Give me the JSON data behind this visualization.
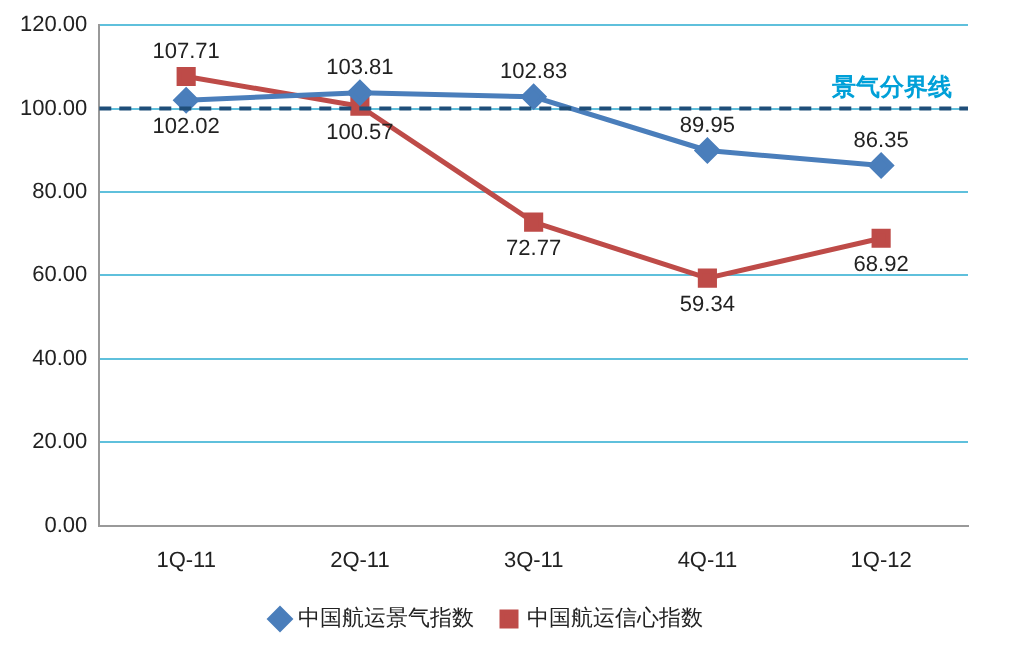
{
  "chart_data": {
    "type": "line",
    "categories": [
      "1Q-11",
      "2Q-11",
      "3Q-11",
      "4Q-11",
      "1Q-12"
    ],
    "series": [
      {
        "name": "中国航运景气指数",
        "color": "#4a7ebb",
        "marker": "diamond",
        "values": [
          102.02,
          103.81,
          102.83,
          89.95,
          86.35
        ]
      },
      {
        "name": "中国航运信心指数",
        "color": "#be4b48",
        "marker": "square",
        "values": [
          107.71,
          100.57,
          72.77,
          59.34,
          68.92
        ]
      }
    ],
    "ylim": [
      0,
      120
    ],
    "yticks": [
      {
        "value": 0,
        "label": "0.00"
      },
      {
        "value": 20,
        "label": "20.00"
      },
      {
        "value": 40,
        "label": "40.00"
      },
      {
        "value": 60,
        "label": "60.00"
      },
      {
        "value": 80,
        "label": "80.00"
      },
      {
        "value": 100,
        "label": "100.00"
      },
      {
        "value": 120,
        "label": "120.00"
      }
    ],
    "grid": "y",
    "legend": "bottom",
    "data_labels": true,
    "line_style": "solid",
    "ref_lines": [
      {
        "axis": "y",
        "value": 100,
        "label": "景气分界线",
        "color": "#1f4e79",
        "line_style": "dashed"
      }
    ]
  }
}
